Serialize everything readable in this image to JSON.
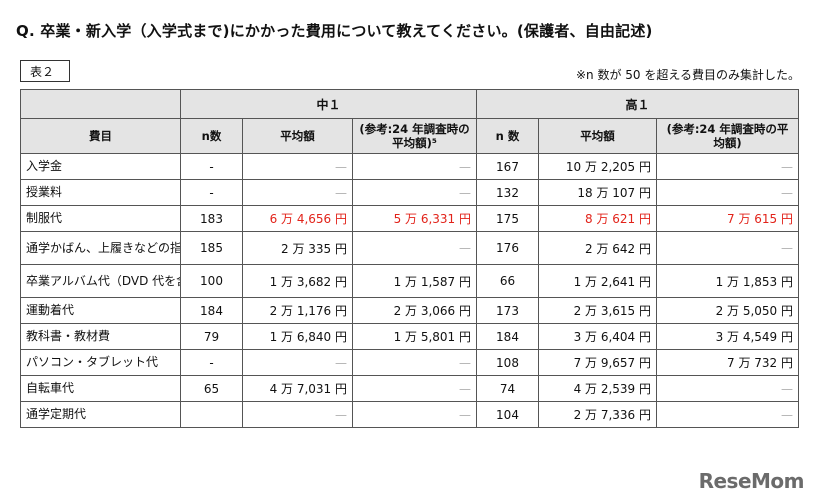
{
  "header": {
    "question": "Q. 卒業・新入学（入学式まで)にかかった費用について教えてください。(保護者、自由記述)",
    "table_label": "表２",
    "note": "※n 数が 50 を超える費目のみ集計した。"
  },
  "table": {
    "groups": [
      "中１",
      "高１"
    ],
    "columns": {
      "item": "費目",
      "n": "n数",
      "n_high": "n 数",
      "avg": "平均額",
      "ref_mid": "(参考:24 年調査時の平均額)⁵",
      "ref_high": "(参考:24 年調査時の平均額)"
    },
    "rows": [
      {
        "item": "入学金",
        "mid_n": "-",
        "mid_avg": "—",
        "mid_ref": "—",
        "high_n": "167",
        "high_avg": "10 万 2,205 円",
        "high_ref": "—"
      },
      {
        "item": "授業料",
        "mid_n": "-",
        "mid_avg": "—",
        "mid_ref": "—",
        "high_n": "132",
        "high_avg": "18 万 107 円",
        "high_ref": "—"
      },
      {
        "item": "制服代",
        "mid_n": "183",
        "mid_avg": "6 万 4,656 円",
        "mid_ref": "5 万 6,331 円",
        "high_n": "175",
        "high_avg": "8 万 621 円",
        "high_ref": "7 万 615 円"
      },
      {
        "item": "通学かばん、上履きなどの指定品類",
        "mid_n": "185",
        "mid_avg": "2 万 335 円",
        "mid_ref": "—",
        "high_n": "176",
        "high_avg": "2 万 642 円",
        "high_ref": "—"
      },
      {
        "item": "卒業アルバム代（DVD 代を含む)",
        "mid_n": "100",
        "mid_avg": "1 万 3,682 円",
        "mid_ref": "1 万 1,587 円",
        "high_n": "66",
        "high_avg": "1 万 2,641 円",
        "high_ref": "1 万 1,853 円"
      },
      {
        "item": "運動着代",
        "mid_n": "184",
        "mid_avg": "2 万 1,176 円",
        "mid_ref": "2 万 3,066 円",
        "high_n": "173",
        "high_avg": "2 万 3,615 円",
        "high_ref": "2 万 5,050 円"
      },
      {
        "item": "教科書・教材費",
        "mid_n": "79",
        "mid_avg": "1 万 6,840 円",
        "mid_ref": "1 万 5,801 円",
        "high_n": "184",
        "high_avg": "3 万 6,404 円",
        "high_ref": "3 万 4,549 円"
      },
      {
        "item": "パソコン・タブレット代",
        "mid_n": "-",
        "mid_avg": "—",
        "mid_ref": "—",
        "high_n": "108",
        "high_avg": "7 万 9,657 円",
        "high_ref": "7 万 732 円"
      },
      {
        "item": "自転車代",
        "mid_n": "65",
        "mid_avg": "4 万 7,031 円",
        "mid_ref": "—",
        "high_n": "74",
        "high_avg": "4 万 2,539 円",
        "high_ref": "—"
      },
      {
        "item": "通学定期代",
        "mid_n": "",
        "mid_avg": "—",
        "mid_ref": "—",
        "high_n": "104",
        "high_avg": "2 万 7,336 円",
        "high_ref": "—"
      }
    ]
  },
  "footer": {
    "logo": "ReseMom"
  },
  "colors": {
    "highlight": "#e2231a",
    "header_bg": "#e4e4e4"
  }
}
